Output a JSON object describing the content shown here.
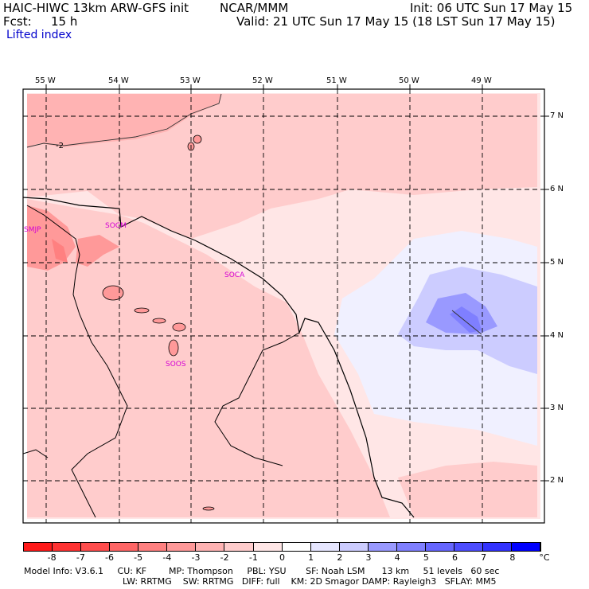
{
  "header": {
    "model": "HAIC-HIWC 13km ARW-GFS init",
    "org": "NCAR/MMM",
    "init": "Init: 06 UTC Sun 17 May 15",
    "fcst_label": "Fcst:",
    "fcst_value": "15 h",
    "valid": "Valid: 21 UTC Sun 17 May 15 (18 LST Sun 17 May 15)",
    "field": "Lifted index"
  },
  "map": {
    "lon_labels": [
      "55 W",
      "54 W",
      "53 W",
      "52 W",
      "51 W",
      "50 W",
      "49 W"
    ],
    "lat_labels": [
      "7 N",
      "6 N",
      "5 N",
      "4 N",
      "3 N",
      "2 N"
    ],
    "contour_label": "-2",
    "stations": [
      "SMJP",
      "SOCM",
      "SOCA",
      "SOOS"
    ]
  },
  "colorbar": {
    "ticks": [
      "-8",
      "-7",
      "-6",
      "-5",
      "-4",
      "-3",
      "-2",
      "-1",
      "0",
      "1",
      "2",
      "3",
      "4",
      "5",
      "6",
      "7",
      "8"
    ],
    "unit": "°C",
    "colors": [
      "#ff1a1a",
      "#ff3333",
      "#ff4d4d",
      "#ff6666",
      "#ff8080",
      "#ff9999",
      "#ffb3b3",
      "#ffcccc",
      "#ffe6e6",
      "#ffffff",
      "#e6e6ff",
      "#ccccff",
      "#9999ff",
      "#7f7fff",
      "#6666ff",
      "#4d4dff",
      "#3333ff",
      "#0000ff"
    ]
  },
  "footer": {
    "line1": "Model Info: V3.6.1     CU: KF        MP: Thompson     PBL: YSU       SF: Noah LSM      13 km     51 levels   60 sec",
    "line2": "LW: RRTMG    SW: RRTMG   DIFF: full    KM: 2D Smagor DAMP: Rayleigh3   SFLAY: MM5"
  }
}
